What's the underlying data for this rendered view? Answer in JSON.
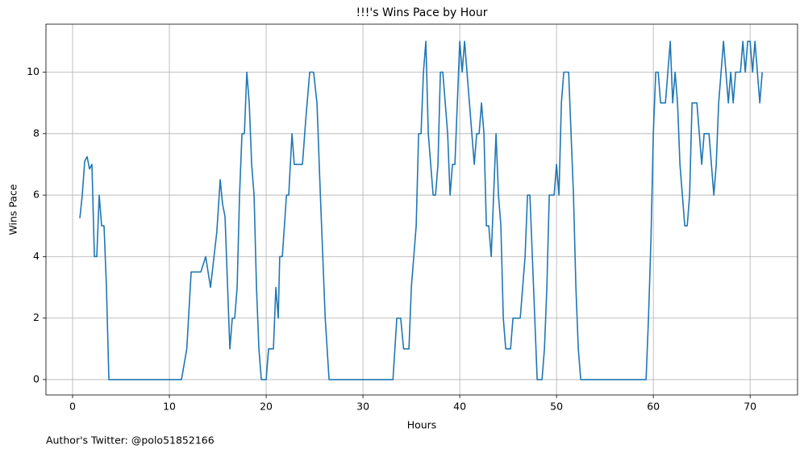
{
  "chart_data": {
    "type": "line",
    "title": "!!!'s Wins Pace by Hour",
    "x_label": "Hours",
    "y_label": "Wins Pace",
    "annotation": "Author's Twitter: @polo51852166",
    "color": "#1f77b4",
    "grid": true,
    "xlim": [
      -2.75,
      74.9
    ],
    "ylim": [
      -0.5,
      11.56
    ],
    "xticks": [
      0,
      10,
      20,
      30,
      40,
      50,
      60,
      70
    ],
    "yticks": [
      0,
      2,
      4,
      6,
      8,
      10
    ],
    "x": [
      0.75,
      1,
      1.25,
      1.5,
      1.75,
      2,
      2.25,
      2.5,
      2.75,
      3,
      3.25,
      3.5,
      3.75,
      11.25,
      11.8,
      12.25,
      13.25,
      13.75,
      14.25,
      14.9,
      15.25,
      15.5,
      15.75,
      16.25,
      16.5,
      16.75,
      17,
      17.25,
      17.5,
      17.75,
      18,
      18.25,
      18.5,
      18.75,
      19,
      19.25,
      19.5,
      20,
      20.25,
      20.75,
      21,
      21.25,
      21.4,
      21.67,
      22.1,
      22.33,
      22.67,
      22.9,
      23.75,
      24.1,
      24.5,
      24.9,
      25.25,
      25.6,
      26.1,
      26.5,
      33.1,
      33.5,
      33.9,
      34.2,
      34.75,
      35,
      35.5,
      35.75,
      36,
      36.25,
      36.5,
      36.75,
      37,
      37.25,
      37.5,
      37.75,
      38,
      38.25,
      38.5,
      38.75,
      39,
      39.25,
      39.5,
      39.75,
      40,
      40.25,
      40.5,
      40.75,
      41.5,
      41.75,
      42,
      42.25,
      42.5,
      42.75,
      43,
      43.25,
      43.5,
      43.75,
      44,
      44.25,
      44.5,
      44.75,
      45.25,
      45.5,
      46,
      46.25,
      46.75,
      47,
      47.25,
      47.5,
      47.75,
      48,
      48.5,
      48.75,
      49,
      49.25,
      49.75,
      50,
      50.25,
      50.5,
      50.75,
      51.25,
      51.5,
      51.75,
      52,
      52.25,
      52.5,
      59.25,
      59.5,
      59.75,
      60,
      60.25,
      60.5,
      60.75,
      61.25,
      61.5,
      61.75,
      62,
      62.25,
      62.5,
      62.75,
      63,
      63.25,
      63.5,
      63.75,
      64,
      64.5,
      64.75,
      65,
      65.25,
      65.75,
      66,
      66.25,
      66.5,
      66.75,
      67,
      67.25,
      67.5,
      67.75,
      68,
      68.25,
      68.5,
      69,
      69.25,
      69.5,
      69.75,
      70,
      70.25,
      70.5,
      70.75,
      71,
      71.25
    ],
    "values": [
      5.25,
      6,
      7.1,
      7.25,
      6.85,
      7,
      4,
      4,
      6,
      5,
      5,
      3,
      0,
      0,
      1,
      3.5,
      3.5,
      4,
      3,
      4.8,
      6.5,
      5.7,
      5.3,
      1,
      2,
      2,
      3,
      6,
      8,
      8,
      10,
      9,
      7,
      6,
      3,
      1,
      0,
      0,
      1,
      1,
      3,
      2,
      4,
      4,
      6,
      6,
      8,
      7,
      7,
      8.5,
      10,
      10,
      9,
      6,
      2,
      0,
      0,
      2,
      2,
      1,
      1,
      3,
      5,
      8,
      8,
      10,
      11,
      8,
      7,
      6,
      6,
      7,
      10,
      10,
      9,
      8,
      6,
      7,
      7,
      9,
      11,
      10,
      11,
      10,
      7,
      8,
      8,
      9,
      8,
      5,
      5,
      4,
      6,
      8,
      6,
      5,
      2,
      1,
      1,
      2,
      2,
      2,
      4,
      6,
      6,
      4,
      2,
      0,
      0,
      1,
      3,
      6,
      6,
      7,
      6,
      9,
      10,
      10,
      8,
      6,
      3,
      1,
      0,
      0,
      2,
      4.5,
      8,
      10,
      10,
      9,
      9,
      10,
      11,
      9,
      10,
      9,
      7,
      6,
      5,
      5,
      6,
      9,
      9,
      8,
      7,
      8,
      8,
      7,
      6,
      7,
      9,
      10,
      11,
      10,
      9,
      10,
      9,
      10,
      10,
      11,
      10,
      11,
      11,
      10,
      11,
      10,
      9,
      10
    ]
  }
}
